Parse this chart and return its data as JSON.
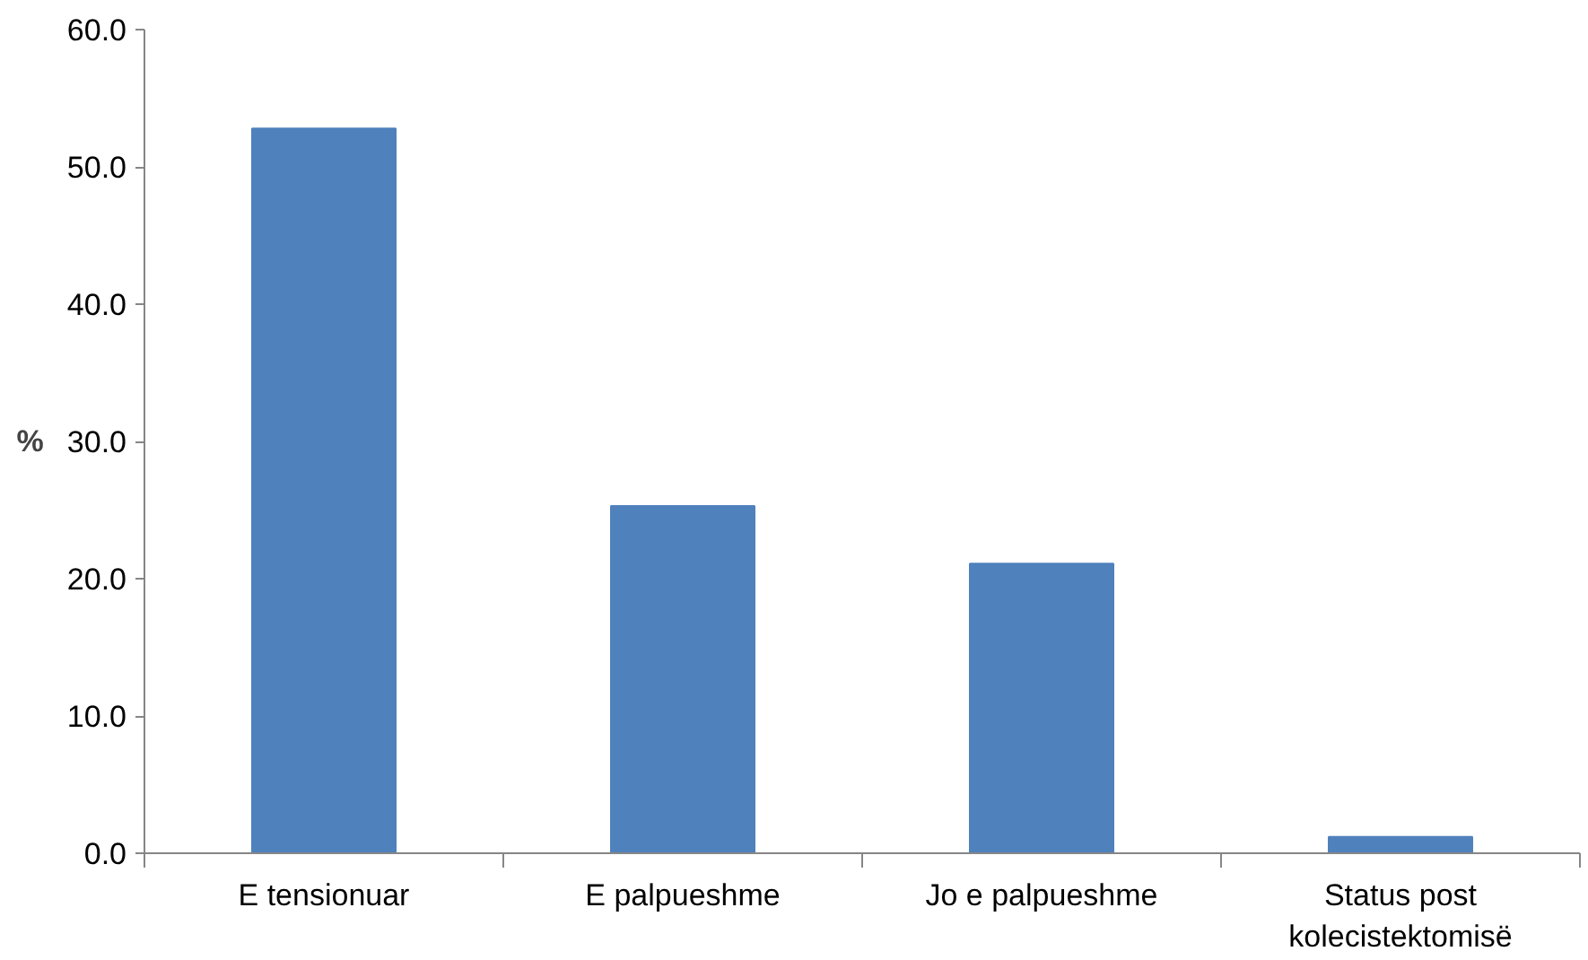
{
  "chart_data": {
    "type": "bar",
    "ylabel": "%",
    "categories": [
      "E tensionuar",
      "E palpueshme",
      "Jo e palpueshme",
      "Status post\nkolecistektomisë"
    ],
    "values": [
      52.8,
      25.3,
      21.1,
      1.2
    ],
    "color": "#4f81bd",
    "ylim": [
      0,
      60
    ],
    "yticks": [
      {
        "value": 0,
        "label": "0.0"
      },
      {
        "value": 10,
        "label": "10.0"
      },
      {
        "value": 20,
        "label": "20.0"
      },
      {
        "value": 30,
        "label": "30.0"
      },
      {
        "value": 40,
        "label": "40.0"
      },
      {
        "value": 50,
        "label": "50.0"
      },
      {
        "value": 60,
        "label": "60.0"
      }
    ],
    "grid": false
  }
}
